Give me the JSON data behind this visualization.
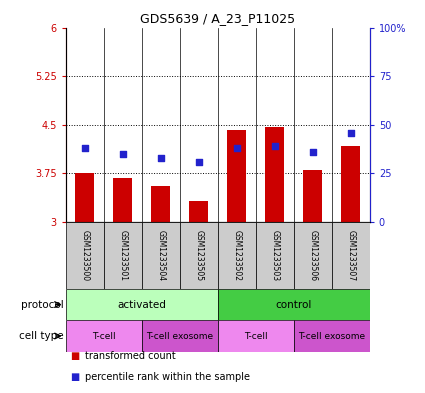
{
  "title": "GDS5639 / A_23_P11025",
  "samples": [
    "GSM1233500",
    "GSM1233501",
    "GSM1233504",
    "GSM1233505",
    "GSM1233502",
    "GSM1233503",
    "GSM1233506",
    "GSM1233507"
  ],
  "red_values": [
    3.75,
    3.68,
    3.55,
    3.32,
    4.42,
    4.46,
    3.8,
    4.18
  ],
  "blue_values": [
    38,
    35,
    33,
    31,
    38,
    39,
    36,
    46
  ],
  "ylim_left": [
    3,
    6
  ],
  "ylim_right": [
    0,
    100
  ],
  "yticks_left": [
    3,
    3.75,
    4.5,
    5.25,
    6
  ],
  "yticks_right": [
    0,
    25,
    50,
    75,
    100
  ],
  "ytick_labels_left": [
    "3",
    "3.75",
    "4.5",
    "5.25",
    "6"
  ],
  "ytick_labels_right": [
    "0",
    "25",
    "50",
    "75",
    "100%"
  ],
  "hlines": [
    3.75,
    4.5,
    5.25
  ],
  "bar_color": "#cc0000",
  "dot_color": "#2222cc",
  "bar_bottom": 3,
  "protocol_groups": [
    {
      "label": "activated",
      "start": 0,
      "end": 4,
      "color": "#bbffbb"
    },
    {
      "label": "control",
      "start": 4,
      "end": 8,
      "color": "#44cc44"
    }
  ],
  "cell_type_groups": [
    {
      "label": "T-cell",
      "start": 0,
      "end": 2,
      "color": "#ee88ee"
    },
    {
      "label": "T-cell exosome",
      "start": 2,
      "end": 4,
      "color": "#cc55cc"
    },
    {
      "label": "T-cell",
      "start": 4,
      "end": 6,
      "color": "#ee88ee"
    },
    {
      "label": "T-cell exosome",
      "start": 6,
      "end": 8,
      "color": "#cc55cc"
    }
  ],
  "legend_items": [
    {
      "label": "transformed count",
      "color": "#cc0000"
    },
    {
      "label": "percentile rank within the sample",
      "color": "#2222cc"
    }
  ],
  "sample_box_color": "#cccccc",
  "bar_width": 0.5,
  "left_labels": [
    "protocol",
    "cell type"
  ],
  "fig_width": 4.25,
  "fig_height": 3.93,
  "fig_dpi": 100
}
